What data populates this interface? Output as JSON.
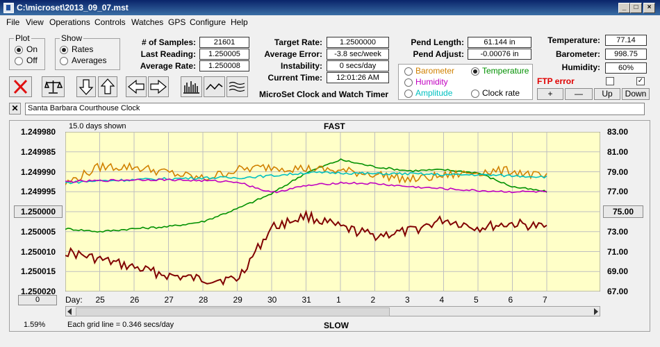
{
  "window": {
    "title": "C:\\microset\\2013_09_07.mst"
  },
  "menu": [
    "File",
    "View",
    "Operations",
    "Controls",
    "Watches",
    "GPS",
    "Configure",
    "Help"
  ],
  "plot": {
    "legend": "Plot",
    "on": "On",
    "off": "Off",
    "selected": "On"
  },
  "show": {
    "legend": "Show",
    "rates": "Rates",
    "averages": "Averages",
    "selected": "Rates"
  },
  "stats1": {
    "samples_label": "# of Samples:",
    "samples": "21601",
    "last_label": "Last Reading:",
    "last": "1.250005",
    "avg_label": "Average Rate:",
    "avg": "1.250008"
  },
  "stats2": {
    "target_label": "Target Rate:",
    "target": "1.2500000",
    "error_label": "Average Error:",
    "error": "-3.8 sec/week",
    "instab_label": "Instability:",
    "instab": "0 secs/day",
    "time_label": "Current Time:",
    "time": "12:01:26 AM"
  },
  "app_caption": "MicroSet Clock and Watch Timer",
  "pend": {
    "length_label": "Pend Length:",
    "length": "61.144 in",
    "adjust_label": "Pend Adjust:",
    "adjust": "-0.00076 in"
  },
  "channels": {
    "barometer": "Barometer",
    "temperature": "Temperature",
    "humidity": "Humidity",
    "amplitude": "Amplitude",
    "clockrate": "Clock rate",
    "selected": "Temperature",
    "colors": {
      "barometer": "#d08000",
      "temperature": "#009000",
      "humidity": "#c000c0",
      "amplitude": "#00c0c0",
      "clockrate": "#000000"
    }
  },
  "env": {
    "temp_label": "Temperature:",
    "temp": "77.14",
    "baro_label": "Barometer:",
    "baro": "998.75",
    "hum_label": "Humidity:",
    "hum": "60%",
    "ftp": "FTP error"
  },
  "scale_buttons": {
    "plus": "+",
    "minus": "—",
    "up": "Up",
    "down": "Down"
  },
  "clock_name": "Santa Barbara Courthouse Clock",
  "chart": {
    "days_shown": "15.0 days shown",
    "top": "FAST",
    "bottom": "SLOW",
    "grid_note": "Each grid line = 0.346 secs/day",
    "percent": "1.59%",
    "left_ticks": [
      "1.249980",
      "1.249985",
      "1.249990",
      "1.249995",
      "1.250000",
      "1.250005",
      "1.250010",
      "1.250015",
      "1.250020"
    ],
    "right_ticks": [
      "83.00",
      "81.00",
      "79.00",
      "77.00",
      "75.00",
      "73.00",
      "71.00",
      "69.00",
      "67.00"
    ],
    "left_button": "0",
    "day_label": "Day:",
    "days": [
      "25",
      "26",
      "27",
      "28",
      "29",
      "30",
      "31",
      "1",
      "2",
      "3",
      "4",
      "5",
      "6",
      "7"
    ]
  },
  "chart_data": {
    "type": "line",
    "x": [
      24.0,
      25.0,
      26.0,
      27.0,
      28.0,
      29.0,
      30.0,
      31.0,
      32.0,
      33.0,
      34.0,
      35.0,
      36.0,
      37.0,
      38.0
    ],
    "y_left_range": [
      1.24998,
      1.25002
    ],
    "y_right_range": [
      67.0,
      83.0
    ],
    "series": [
      {
        "name": "Clock rate",
        "color": "#800000",
        "axis": "left",
        "values": [
          1.25001,
          1.250012,
          1.250014,
          1.250016,
          1.250017,
          1.250017,
          1.250004,
          1.250001,
          1.250004,
          1.250006,
          1.250005,
          1.250002,
          1.250004,
          1.250003,
          1.250004
        ]
      },
      {
        "name": "Temperature",
        "color": "#009000",
        "axis": "right",
        "values": [
          73.3,
          73.0,
          73.3,
          73.5,
          74.0,
          75.3,
          76.8,
          78.9,
          80.2,
          79.5,
          79.1,
          79.2,
          78.9,
          77.5,
          77.0
        ]
      },
      {
        "name": "Barometer",
        "color": "#d08000",
        "axis": "right",
        "values": [
          77.8,
          79.5,
          79.5,
          78.9,
          78.3,
          79.2,
          79.5,
          79.3,
          79.1,
          78.8,
          78.2,
          78.6,
          79.0,
          79.1,
          78.4
        ]
      },
      {
        "name": "Amplitude",
        "color": "#00c0c0",
        "axis": "right",
        "values": [
          77.9,
          78.1,
          78.2,
          78.3,
          78.4,
          78.4,
          78.6,
          78.9,
          78.9,
          78.8,
          78.8,
          78.7,
          78.7,
          78.6,
          78.5
        ]
      },
      {
        "name": "Humidity",
        "color": "#c000c0",
        "axis": "right",
        "values": [
          78.0,
          78.1,
          78.2,
          78.2,
          78.1,
          78.0,
          76.9,
          77.6,
          77.9,
          77.8,
          77.5,
          77.3,
          77.1,
          77.0,
          77.0
        ]
      }
    ]
  }
}
